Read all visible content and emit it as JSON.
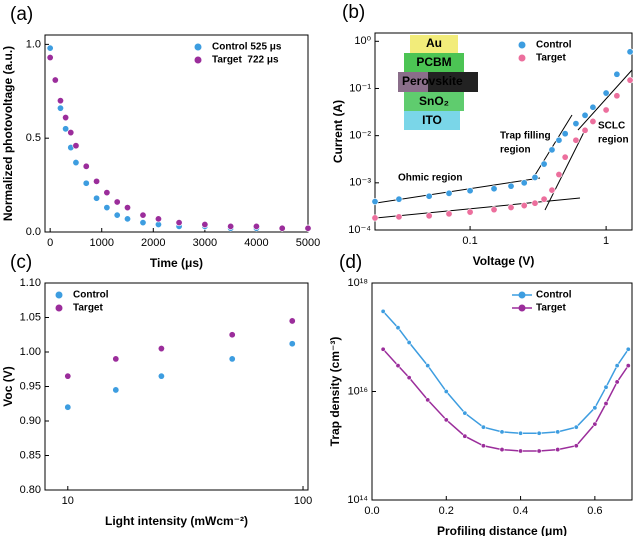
{
  "chart_data": [
    {
      "type": "scatter",
      "label": "(a)",
      "xlabel": "Time (μs)",
      "ylabel": "Normalized photovoltage (a.u.)",
      "xlim": [
        -100,
        5000
      ],
      "ylim": [
        0,
        1.05
      ],
      "xticks": [
        0,
        1000,
        2000,
        3000,
        4000,
        5000
      ],
      "yticks": [
        {
          "value": 0,
          "label": "0.0"
        },
        {
          "value": 0.5,
          "label": "0.5"
        },
        {
          "value": 1,
          "label": "1.0"
        }
      ],
      "legend": "upper right",
      "x": [
        0,
        100,
        200,
        300,
        400,
        500,
        700,
        900,
        1100,
        1300,
        1500,
        1800,
        2100,
        2500,
        3000,
        3500,
        4000,
        4500,
        5000
      ],
      "series": [
        {
          "name": "Control 525 μs",
          "color": "#3d9de0",
          "values": [
            0.98,
            0.81,
            0.66,
            0.55,
            0.45,
            0.37,
            0.26,
            0.18,
            0.13,
            0.09,
            0.07,
            0.05,
            0.04,
            0.03,
            0.03,
            0.02,
            0.02,
            0.02,
            0.02
          ]
        },
        {
          "name": "Target  722 μs",
          "color": "#9b2d9b",
          "values": [
            0.93,
            0.81,
            0.7,
            0.61,
            0.53,
            0.46,
            0.35,
            0.27,
            0.21,
            0.16,
            0.13,
            0.09,
            0.07,
            0.05,
            0.04,
            0.03,
            0.03,
            0.02,
            0.02
          ]
        }
      ]
    },
    {
      "type": "scatter",
      "label": "(b)",
      "xlabel": "Voltage (V)",
      "ylabel": "Current (A)",
      "xlog": true,
      "ylog": true,
      "xlim": [
        0.02,
        1.55
      ],
      "ylim": [
        0.0001,
        1.5
      ],
      "xticks": [
        0.1,
        1
      ],
      "yticks": [
        {
          "value": 0.0001,
          "label": "10⁻⁴"
        },
        {
          "value": 0.001,
          "label": "10⁻³"
        },
        {
          "value": 0.01,
          "label": "10⁻²"
        },
        {
          "value": 0.1,
          "label": "10⁻¹"
        },
        {
          "value": 1,
          "label": "10⁰"
        }
      ],
      "legend": "upper right",
      "annotations": [
        "Ohmic region",
        "Trap filling",
        "region",
        "SCLC",
        "region"
      ],
      "inset_layers": [
        "Au",
        "PCBM",
        "Perovskite",
        "SnO₂",
        "ITO"
      ],
      "x": [
        0.02,
        0.03,
        0.05,
        0.07,
        0.1,
        0.15,
        0.2,
        0.25,
        0.3,
        0.35,
        0.4,
        0.45,
        0.5,
        0.6,
        0.7,
        0.8,
        1.0,
        1.2,
        1.5
      ],
      "series": [
        {
          "name": "Control",
          "color": "#3d9de0",
          "values": [
            0.0004,
            0.00045,
            0.00052,
            0.0006,
            0.00068,
            0.00075,
            0.00085,
            0.001,
            0.0013,
            0.0025,
            0.005,
            0.008,
            0.011,
            0.018,
            0.027,
            0.04,
            0.08,
            0.2,
            0.6
          ]
        },
        {
          "name": "Target",
          "color": "#ec6f9d",
          "values": [
            0.00018,
            0.00019,
            0.0002,
            0.00022,
            0.00024,
            0.00027,
            0.0003,
            0.00033,
            0.00037,
            0.00045,
            0.0007,
            0.0015,
            0.0035,
            0.008,
            0.013,
            0.02,
            0.035,
            0.07,
            0.15
          ]
        }
      ]
    },
    {
      "type": "scatter",
      "label": "(c)",
      "xlabel": "Light intensity (mWcm⁻²)",
      "ylabel": "Voc (V)",
      "xlog": true,
      "xlim": [
        8,
        105
      ],
      "ylim": [
        0.8,
        1.1
      ],
      "xticks": [
        10,
        100
      ],
      "yticks": [
        {
          "value": 0.8,
          "label": "0.80"
        },
        {
          "value": 0.85,
          "label": "0.85"
        },
        {
          "value": 0.9,
          "label": "0.90"
        },
        {
          "value": 0.95,
          "label": "0.95"
        },
        {
          "value": 1,
          "label": "1.00"
        },
        {
          "value": 1.05,
          "label": "1.05"
        },
        {
          "value": 1.1,
          "label": "1.10"
        }
      ],
      "legend": "upper left",
      "x": [
        10,
        16,
        25,
        50,
        90
      ],
      "series": [
        {
          "name": "Control",
          "color": "#3d9de0",
          "values": [
            0.92,
            0.945,
            0.965,
            0.99,
            1.012
          ]
        },
        {
          "name": "Target",
          "color": "#9b2d9b",
          "values": [
            0.965,
            0.99,
            1.005,
            1.025,
            1.045
          ]
        }
      ]
    },
    {
      "type": "line",
      "label": "(d)",
      "xlabel": "Profiling distance (μm)",
      "ylabel": "Trap density (cm⁻³)",
      "ylog": true,
      "xlim": [
        0,
        0.7
      ],
      "ylim": [
        100000000000000.0,
        1e+18
      ],
      "xticks": [
        {
          "value": 0,
          "label": "0.0"
        },
        {
          "value": 0.2,
          "label": "0.2"
        },
        {
          "value": 0.4,
          "label": "0.4"
        },
        {
          "value": 0.6,
          "label": "0.6"
        }
      ],
      "yticks": [
        {
          "value": 100000000000000.0,
          "label": "10¹⁴"
        },
        {
          "value": 1e+16,
          "label": "10¹⁶"
        },
        {
          "value": 1e+18,
          "label": "10¹⁸"
        }
      ],
      "legend": "upper right",
      "x": [
        0.03,
        0.07,
        0.1,
        0.15,
        0.2,
        0.25,
        0.3,
        0.35,
        0.4,
        0.45,
        0.5,
        0.55,
        0.6,
        0.63,
        0.66,
        0.69
      ],
      "series": [
        {
          "name": "Control",
          "color": "#3d9de0",
          "values": [
            3e+17,
            1.5e+17,
            8e+16,
            3e+16,
            1e+16,
            4000000000000000.0,
            2200000000000000.0,
            1800000000000000.0,
            1700000000000000.0,
            1700000000000000.0,
            1800000000000000.0,
            2200000000000000.0,
            5000000000000000.0,
            1.2e+16,
            3e+16,
            6e+16
          ]
        },
        {
          "name": "Target",
          "color": "#9b2d9b",
          "values": [
            6e+16,
            3e+16,
            1.8e+16,
            7000000000000000.0,
            3000000000000000.0,
            1500000000000000.0,
            1000000000000000.0,
            850000000000000.0,
            800000000000000.0,
            800000000000000.0,
            850000000000000.0,
            1000000000000000.0,
            2500000000000000.0,
            6000000000000000.0,
            1.5e+16,
            3e+16
          ]
        }
      ]
    }
  ]
}
